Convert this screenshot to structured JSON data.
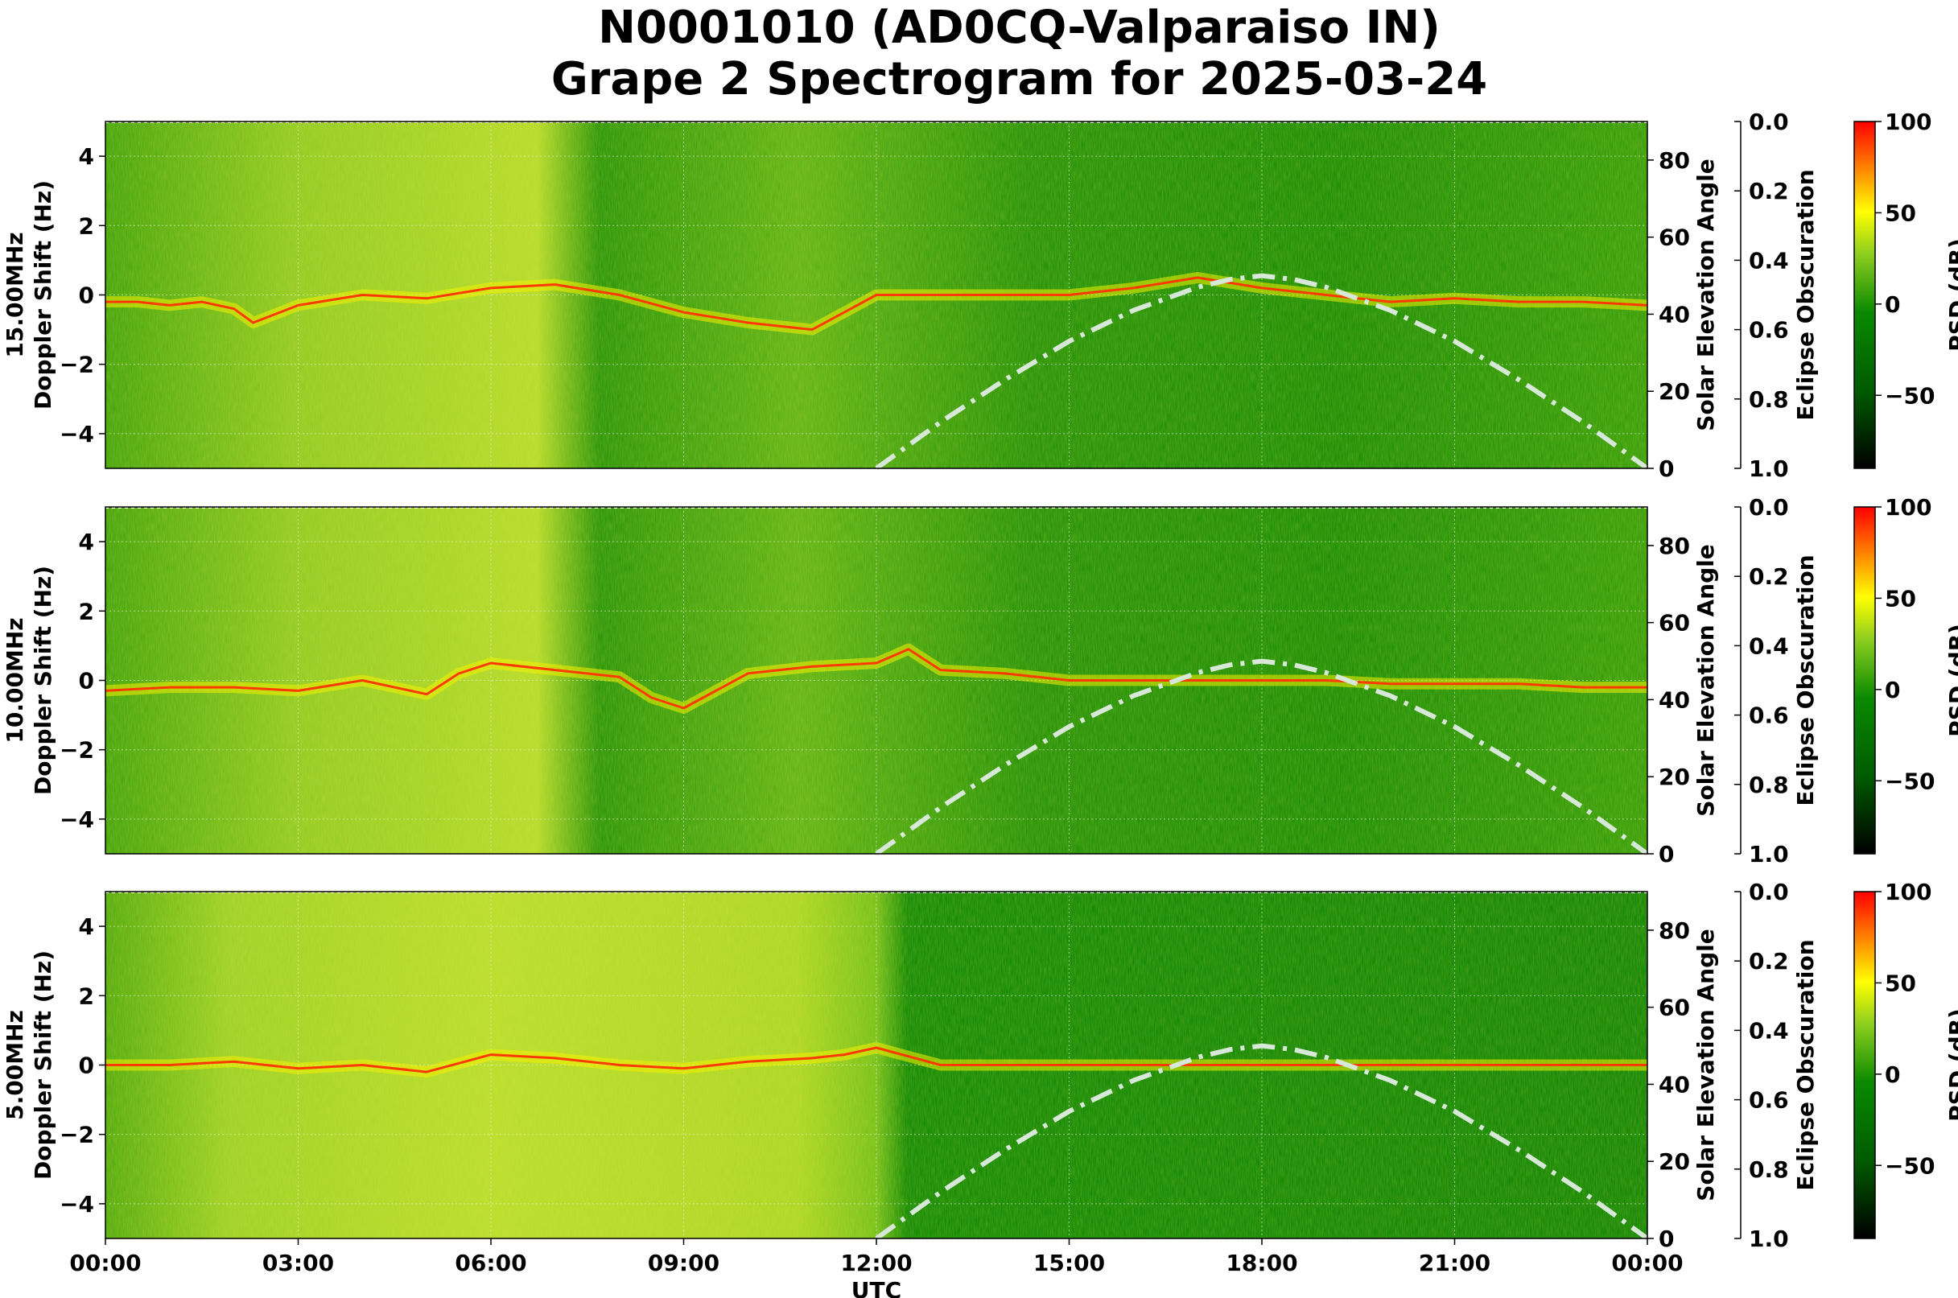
{
  "title": {
    "line1": "N0001010 (AD0CQ-Valparaiso IN)",
    "line2": "Grape 2 Spectrogram for 2025-03-24"
  },
  "colors": {
    "psd_low": "#000000",
    "psd_mid": "#007a00",
    "psd_yellow": "#ffff00",
    "psd_high": "#ff0000",
    "solar_curve": "#d8e8d8"
  },
  "chart_data": {
    "type": "heatmap",
    "xlabel": "UTC",
    "x_ticks": [
      "00:00",
      "03:00",
      "06:00",
      "09:00",
      "12:00",
      "15:00",
      "18:00",
      "21:00",
      "00:00"
    ],
    "xlim_hours": [
      0,
      24
    ],
    "y_ticks": [
      "4",
      "2",
      "0",
      "−2",
      "−4"
    ],
    "y_tick_values": [
      4,
      2,
      0,
      -2,
      -4
    ],
    "ylim": [
      -5,
      5
    ],
    "right_axis": {
      "label": "Solar Elevation Angle",
      "ticks": [
        "80",
        "60",
        "40",
        "20",
        "0"
      ],
      "tick_values": [
        80,
        60,
        40,
        20,
        0
      ],
      "ylim": [
        0,
        90
      ]
    },
    "eclipse_axis": {
      "label": "Eclipse Obscuration",
      "ticks": [
        "0.0",
        "0.2",
        "0.4",
        "0.6",
        "0.8",
        "1.0"
      ],
      "tick_values": [
        0.0,
        0.2,
        0.4,
        0.6,
        0.8,
        1.0
      ],
      "inverted": true
    },
    "colorbar": {
      "label": "PSD (dB)",
      "ticks": [
        "100",
        "50",
        "0",
        "−50"
      ],
      "tick_values": [
        100,
        50,
        0,
        -50
      ],
      "range": [
        -90,
        100
      ]
    },
    "solar_elevation_series": {
      "x_hours": [
        12.0,
        13.0,
        14.0,
        15.0,
        16.0,
        17.0,
        17.5,
        18.0,
        18.5,
        19.0,
        20.0,
        21.0,
        22.0,
        23.0,
        24.0
      ],
      "y_degrees": [
        0,
        12,
        23,
        33,
        41,
        47,
        49,
        50,
        49,
        47,
        41,
        33,
        23,
        12,
        0
      ]
    },
    "panels": [
      {
        "ylabel_line1": "15.00MHz",
        "ylabel_line2": "Doppler Shift (Hz)",
        "carrier_doppler_x_hours": [
          0,
          0.5,
          1,
          1.5,
          2,
          2.3,
          3,
          4,
          5,
          6,
          7,
          8,
          9,
          10,
          11,
          12,
          13,
          14,
          15,
          16,
          17,
          18,
          19,
          20,
          21,
          22,
          23,
          24
        ],
        "carrier_doppler_hz": [
          -0.2,
          -0.2,
          -0.3,
          -0.2,
          -0.4,
          -0.8,
          -0.3,
          0.0,
          -0.1,
          0.2,
          0.3,
          0.0,
          -0.5,
          -0.8,
          -1.0,
          0.0,
          0.0,
          0.0,
          0.0,
          0.2,
          0.5,
          0.2,
          0.0,
          -0.2,
          -0.1,
          -0.2,
          -0.2,
          -0.3
        ]
      },
      {
        "ylabel_line1": "10.00MHz",
        "ylabel_line2": "Doppler Shift (Hz)",
        "carrier_doppler_x_hours": [
          0,
          1,
          2,
          3,
          4,
          5,
          5.5,
          6,
          7,
          8,
          8.5,
          9,
          10,
          11,
          12,
          12.5,
          13,
          14,
          15,
          16,
          17,
          18,
          19,
          20,
          21,
          22,
          23,
          24
        ],
        "carrier_doppler_hz": [
          -0.3,
          -0.2,
          -0.2,
          -0.3,
          0.0,
          -0.4,
          0.2,
          0.5,
          0.3,
          0.1,
          -0.5,
          -0.8,
          0.2,
          0.4,
          0.5,
          0.9,
          0.3,
          0.2,
          0.0,
          0.0,
          0.0,
          0.0,
          0.0,
          -0.1,
          -0.1,
          -0.1,
          -0.2,
          -0.2
        ]
      },
      {
        "ylabel_line1": "5.00MHz",
        "ylabel_line2": "Doppler Shift (Hz)",
        "carrier_doppler_x_hours": [
          0,
          1,
          2,
          3,
          4,
          5,
          6,
          7,
          8,
          9,
          10,
          11,
          11.5,
          12,
          13,
          14,
          15,
          16,
          17,
          18,
          19,
          20,
          21,
          22,
          23,
          24
        ],
        "carrier_doppler_hz": [
          0.0,
          0.0,
          0.1,
          -0.1,
          0.0,
          -0.2,
          0.3,
          0.2,
          0.0,
          -0.1,
          0.1,
          0.2,
          0.3,
          0.5,
          0.0,
          0.0,
          0.0,
          0.0,
          0.0,
          0.0,
          0.0,
          0.0,
          0.0,
          0.0,
          0.0,
          0.0
        ]
      }
    ]
  }
}
